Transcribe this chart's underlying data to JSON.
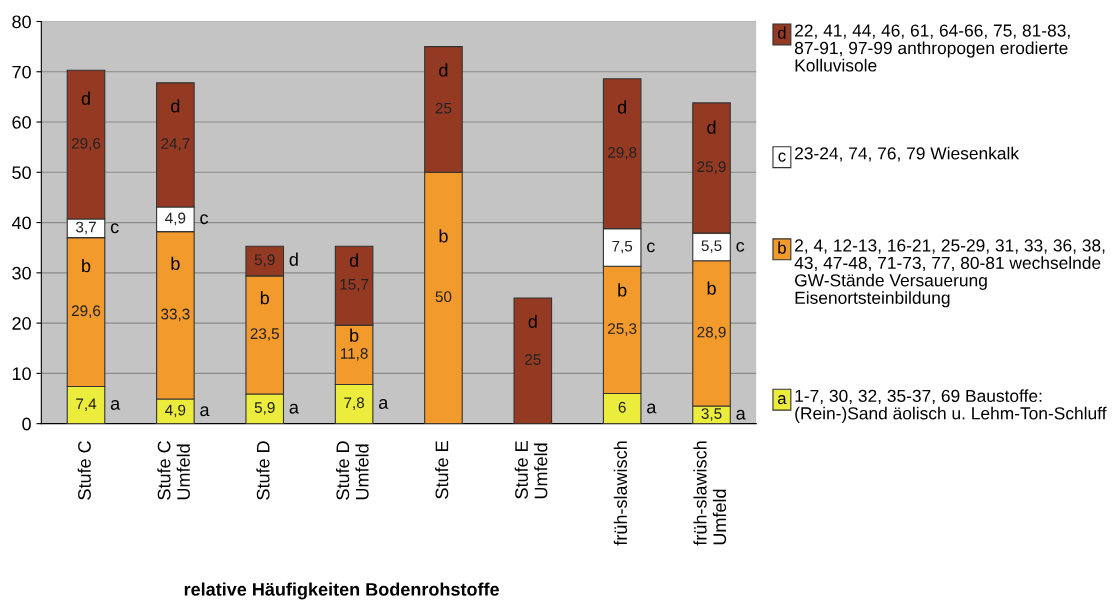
{
  "chart_data": {
    "type": "bar",
    "stacked": true,
    "xlabel": "relative Häufigkeiten Bodenrohstoffe",
    "categories": [
      "Stufe C",
      "Stufe C Umfeld",
      "Stufe D",
      "Stufe D Umfeld",
      "Stufe E",
      "Stufe E Umfeld",
      "früh-slawisch",
      "früh-slawisch Umfeld"
    ],
    "series": [
      {
        "name": "1-7, 30, 32, 35-37, 69 Baustoffe: (Rein-)Sand äolisch u. Lehm-Ton-Schluff",
        "color": "#ecec3c",
        "values": [
          7.4,
          4.9,
          5.9,
          7.8,
          null,
          null,
          6,
          3.5
        ],
        "value_labels": [
          "7,4",
          "4,9",
          "5,9",
          "7,8",
          null,
          null,
          "6",
          "3,5"
        ]
      },
      {
        "name": "2, 4, 12-13, 16-21, 25-29, 31, 33, 36, 38, 43, 47-48, 71-73, 77, 80-81 wechselnde GW-Stände Versauerung Eisenortsteinbildung",
        "color": "#f39a2c",
        "values": [
          29.6,
          33.3,
          23.5,
          11.8,
          50,
          null,
          25.3,
          28.9
        ],
        "value_labels": [
          "29,6",
          "33,3",
          "23,5",
          "11,8",
          "50",
          null,
          "25,3",
          "28,9"
        ]
      },
      {
        "name": "23-24, 74, 76, 79 Wiesenkalk",
        "color": "#ffffff",
        "values": [
          3.7,
          4.9,
          null,
          null,
          null,
          null,
          7.5,
          5.5
        ],
        "value_labels": [
          "3,7",
          "4,9",
          null,
          null,
          null,
          null,
          "7,5",
          "5,5"
        ]
      },
      {
        "name": "22, 41, 44, 46, 61, 64-66, 75, 81-83, 87-91, 97-99 anthropogen erodierte Kolluvisole",
        "color": "#953a22",
        "values": [
          29.6,
          24.7,
          5.9,
          15.7,
          25,
          25,
          29.8,
          25.9
        ],
        "value_labels": [
          "29,6",
          "24,7",
          "5,9",
          "15,7",
          "25",
          "25",
          "29,8",
          "25,9"
        ]
      }
    ],
    "ylim": [
      0,
      80
    ],
    "yticks": [
      0,
      10,
      20,
      30,
      40,
      50,
      60,
      70,
      80
    ],
    "grid": "y",
    "legend": "right",
    "annotations": [
      "a",
      "b",
      "c",
      "d"
    ]
  }
}
